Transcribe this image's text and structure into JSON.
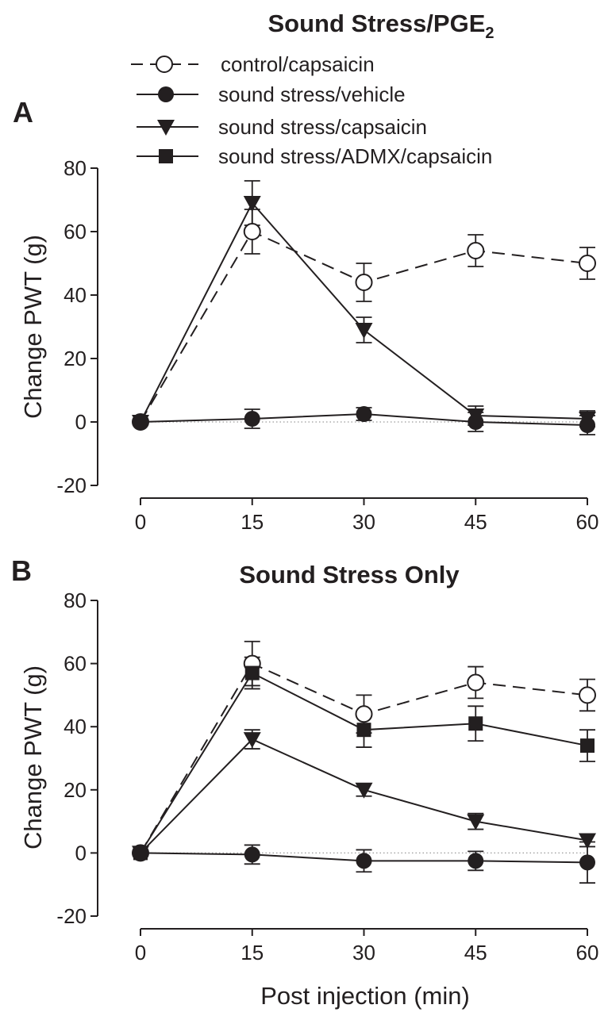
{
  "figure": {
    "xlabel": "Post injection (min)"
  },
  "legend": {
    "items": [
      {
        "label": "control/capsaicin",
        "marker": "open-circle",
        "dash": true
      },
      {
        "label": "sound stress/vehicle",
        "marker": "filled-circle",
        "dash": false
      },
      {
        "label": "sound stress/capsaicin",
        "marker": "filled-down-triangle",
        "dash": false
      },
      {
        "label": "sound stress/ADMX/capsaicin",
        "marker": "filled-square",
        "dash": false
      }
    ]
  },
  "colors": {
    "ink": "#231f20",
    "zero_line": "#9a9a9a",
    "background": "#ffffff"
  },
  "chart_data": [
    {
      "type": "line",
      "panel_label": "A",
      "title": "Sound Stress/PGE",
      "title_subscript": "2",
      "ylabel": "Change PWT (g)",
      "xlabel": "",
      "x": [
        0,
        15,
        30,
        45,
        60
      ],
      "x_ticks": [
        "0",
        "15",
        "30",
        "45",
        "60"
      ],
      "y_ticks": [
        "-20",
        "0",
        "20",
        "40",
        "60",
        "80"
      ],
      "xlim": [
        0,
        60
      ],
      "ylim": [
        -20,
        80
      ],
      "series": [
        {
          "name": "control/capsaicin",
          "marker": "open-circle",
          "dash": true,
          "values": [
            0,
            60,
            44,
            54,
            50
          ],
          "errors": [
            0,
            7,
            6,
            5,
            5
          ]
        },
        {
          "name": "sound stress/vehicle",
          "marker": "filled-circle",
          "dash": false,
          "values": [
            0,
            1,
            2.5,
            0,
            -1
          ],
          "errors": [
            0,
            3,
            2,
            3,
            3
          ]
        },
        {
          "name": "sound stress/capsaicin",
          "marker": "filled-down-triangle",
          "dash": false,
          "values": [
            0,
            69,
            29,
            2,
            1
          ],
          "errors": [
            0,
            7,
            4,
            3,
            2.5
          ]
        }
      ]
    },
    {
      "type": "line",
      "panel_label": "B",
      "title": "Sound Stress Only",
      "ylabel": "Change PWT (g)",
      "xlabel": "Post injection (min)",
      "x": [
        0,
        15,
        30,
        45,
        60
      ],
      "x_ticks": [
        "0",
        "15",
        "30",
        "45",
        "60"
      ],
      "y_ticks": [
        "-20",
        "0",
        "20",
        "40",
        "60",
        "80"
      ],
      "xlim": [
        0,
        60
      ],
      "ylim": [
        -20,
        80
      ],
      "series": [
        {
          "name": "control/capsaicin",
          "marker": "open-circle",
          "dash": true,
          "values": [
            0,
            60,
            44,
            54,
            50
          ],
          "errors": [
            0,
            7,
            6,
            5,
            5
          ]
        },
        {
          "name": "sound stress/vehicle",
          "marker": "filled-circle",
          "dash": false,
          "values": [
            0,
            -0.5,
            -2.5,
            -2.5,
            -3
          ],
          "errors": [
            0,
            3,
            3.5,
            3,
            6.5
          ]
        },
        {
          "name": "sound stress/capsaicin",
          "marker": "filled-down-triangle",
          "dash": false,
          "values": [
            0,
            36,
            20,
            10,
            4
          ],
          "errors": [
            0,
            3,
            2,
            2.5,
            2
          ]
        },
        {
          "name": "sound stress/ADMX/capsaicin",
          "marker": "filled-square",
          "dash": false,
          "values": [
            0,
            57,
            39,
            41,
            34
          ],
          "errors": [
            0,
            5,
            5.5,
            5.5,
            5
          ]
        }
      ]
    }
  ]
}
